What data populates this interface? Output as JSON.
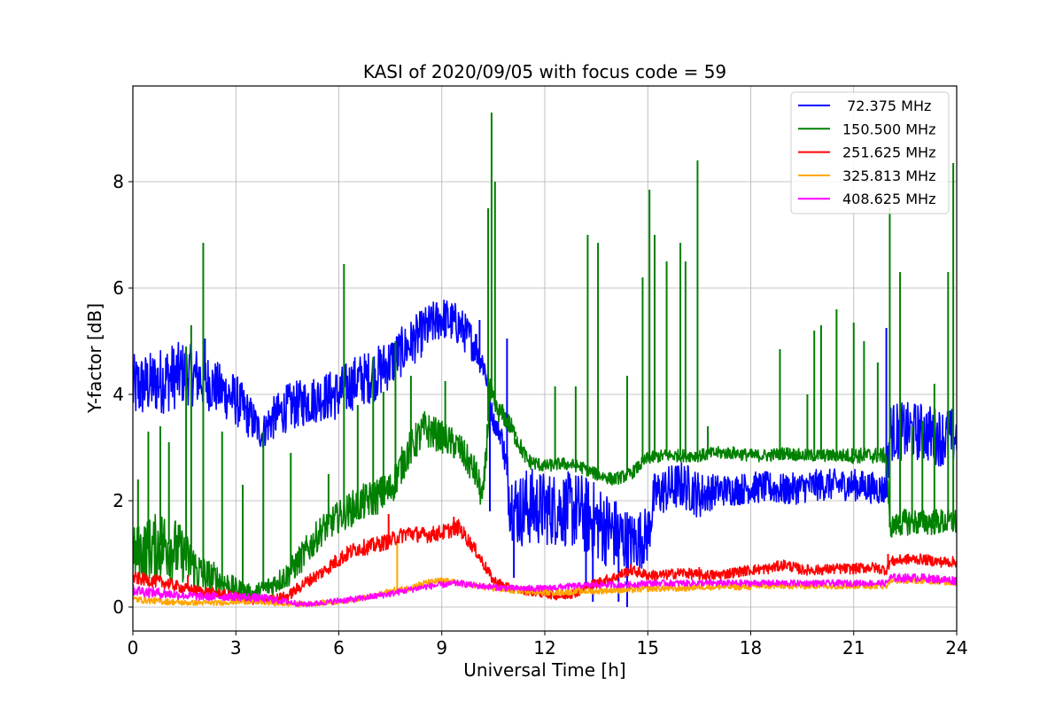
{
  "chart_data": {
    "type": "line",
    "title": "KASI of 2020/09/05 with focus code = 59",
    "xlabel": "Universal Time [h]",
    "ylabel": "Y-factor [dB]",
    "xlim": [
      0,
      24
    ],
    "ylim": [
      -0.45,
      9.8
    ],
    "xticks": [
      0,
      3,
      6,
      9,
      12,
      15,
      18,
      21,
      24
    ],
    "yticks": [
      0,
      2,
      4,
      6,
      8
    ],
    "grid": true,
    "legend_position": "top-right",
    "series": [
      {
        "name": " 72.375 MHz",
        "color": "#0000ff",
        "x": [
          0,
          0.5,
          1,
          1.5,
          2,
          2.5,
          3,
          3.5,
          3.75,
          4,
          4.5,
          5,
          5.5,
          6,
          6.5,
          7,
          7.5,
          8,
          8.5,
          9,
          9.5,
          10,
          10.25,
          10.5,
          10.75,
          11,
          11.25,
          11.5,
          12,
          12.5,
          13,
          13.5,
          14,
          14.5,
          15,
          15.2,
          15.5,
          16,
          16.3,
          16.5,
          17,
          17.5,
          18,
          18.5,
          19,
          19.5,
          20,
          20.5,
          21,
          21.5,
          21.95,
          22.05,
          22.5,
          23,
          23.5,
          24
        ],
        "y": [
          4.1,
          4.2,
          4.3,
          4.4,
          4.3,
          4.1,
          3.9,
          3.5,
          3.25,
          3.5,
          3.75,
          3.85,
          3.95,
          4.0,
          4.25,
          4.35,
          4.6,
          4.9,
          5.2,
          5.45,
          5.3,
          4.9,
          4.5,
          3.5,
          3.2,
          2.0,
          1.8,
          1.9,
          1.85,
          1.85,
          1.8,
          1.6,
          1.4,
          1.2,
          1.35,
          2.1,
          2.2,
          2.3,
          2.2,
          2.1,
          2.2,
          2.2,
          2.25,
          2.25,
          2.2,
          2.25,
          2.3,
          2.3,
          2.3,
          2.25,
          2.2,
          3.3,
          3.3,
          3.3,
          3.2,
          3.2
        ],
        "spread": [
          0.65,
          0.6,
          0.65,
          0.6,
          0.55,
          0.5,
          0.5,
          0.4,
          0.3,
          0.4,
          0.45,
          0.45,
          0.45,
          0.5,
          0.5,
          0.5,
          0.5,
          0.45,
          0.45,
          0.4,
          0.4,
          0.35,
          0.3,
          0.2,
          0.2,
          0.7,
          0.7,
          0.75,
          0.7,
          0.7,
          0.75,
          0.75,
          0.7,
          0.6,
          0.55,
          0.45,
          0.45,
          0.45,
          0.45,
          0.45,
          0.3,
          0.3,
          0.3,
          0.3,
          0.3,
          0.3,
          0.3,
          0.3,
          0.3,
          0.3,
          0.3,
          0.55,
          0.55,
          0.55,
          0.55,
          0.55
        ],
        "spikes": [
          [
            2.1,
            5.05
          ],
          [
            10.1,
            5.4
          ],
          [
            10.4,
            1.8
          ],
          [
            10.9,
            5.05
          ],
          [
            11.1,
            0.55
          ],
          [
            13.2,
            0.45
          ],
          [
            13.4,
            0.1
          ],
          [
            14.15,
            0.1
          ],
          [
            14.4,
            0.0
          ],
          [
            21.95,
            5.25
          ]
        ]
      },
      {
        "name": "150.500 MHz",
        "color": "#008000",
        "x": [
          0,
          0.5,
          1,
          1.5,
          2,
          2.5,
          3,
          3.5,
          4,
          4.5,
          5,
          5.5,
          6,
          6.5,
          7,
          7.5,
          8,
          8.5,
          9,
          9.5,
          10,
          10.2,
          10.4,
          10.6,
          10.8,
          11,
          11.5,
          12,
          12.5,
          13,
          13.5,
          14,
          14.5,
          15,
          15.5,
          16,
          16.5,
          17,
          17.5,
          18,
          18.5,
          19,
          19.5,
          20,
          20.5,
          21,
          21.5,
          21.95,
          22.05,
          22.5,
          23,
          23.5,
          24
        ],
        "y": [
          1.0,
          1.1,
          1.2,
          0.95,
          0.6,
          0.5,
          0.35,
          0.25,
          0.4,
          0.6,
          1.0,
          1.45,
          1.7,
          1.9,
          2.05,
          2.2,
          2.9,
          3.35,
          3.2,
          3.0,
          2.5,
          2.0,
          4.0,
          3.7,
          3.6,
          3.4,
          2.75,
          2.65,
          2.7,
          2.65,
          2.5,
          2.4,
          2.5,
          2.8,
          2.85,
          2.85,
          2.85,
          2.9,
          2.9,
          2.85,
          2.85,
          2.9,
          2.85,
          2.85,
          2.85,
          2.85,
          2.85,
          2.85,
          1.5,
          1.6,
          1.6,
          1.6,
          1.6
        ],
        "spread": [
          0.5,
          0.6,
          0.7,
          0.5,
          0.4,
          0.3,
          0.2,
          0.15,
          0.2,
          0.25,
          0.3,
          0.3,
          0.3,
          0.35,
          0.35,
          0.35,
          0.35,
          0.35,
          0.3,
          0.3,
          0.3,
          0.3,
          0.3,
          0.2,
          0.2,
          0.2,
          0.15,
          0.12,
          0.12,
          0.12,
          0.12,
          0.12,
          0.12,
          0.12,
          0.12,
          0.12,
          0.12,
          0.12,
          0.12,
          0.12,
          0.12,
          0.12,
          0.12,
          0.12,
          0.12,
          0.15,
          0.15,
          0.15,
          0.2,
          0.25,
          0.25,
          0.25,
          0.25
        ],
        "spikes": [
          [
            0.15,
            2.4
          ],
          [
            0.45,
            3.3
          ],
          [
            0.8,
            3.4
          ],
          [
            1.05,
            3.1
          ],
          [
            1.55,
            4.9
          ],
          [
            1.7,
            5.3
          ],
          [
            2.05,
            6.85
          ],
          [
            2.6,
            3.3
          ],
          [
            3.2,
            2.3
          ],
          [
            3.8,
            3.3
          ],
          [
            4.6,
            2.9
          ],
          [
            5.7,
            2.5
          ],
          [
            6.15,
            6.45
          ],
          [
            6.55,
            3.8
          ],
          [
            7.0,
            4.7
          ],
          [
            7.3,
            4.05
          ],
          [
            7.65,
            5.0
          ],
          [
            8.1,
            4.35
          ],
          [
            9.1,
            4.25
          ],
          [
            10.35,
            7.5
          ],
          [
            10.45,
            9.3
          ],
          [
            10.55,
            8.0
          ],
          [
            11.15,
            3.3
          ],
          [
            12.3,
            4.15
          ],
          [
            12.9,
            4.15
          ],
          [
            13.25,
            7.0
          ],
          [
            13.55,
            6.85
          ],
          [
            14.4,
            4.35
          ],
          [
            14.85,
            6.2
          ],
          [
            15.05,
            7.85
          ],
          [
            15.2,
            7.0
          ],
          [
            15.55,
            6.5
          ],
          [
            15.95,
            6.85
          ],
          [
            16.1,
            6.5
          ],
          [
            16.45,
            8.4
          ],
          [
            16.75,
            3.4
          ],
          [
            18.85,
            4.85
          ],
          [
            19.65,
            4.0
          ],
          [
            19.85,
            5.2
          ],
          [
            20.05,
            5.3
          ],
          [
            20.5,
            5.6
          ],
          [
            21.0,
            5.35
          ],
          [
            21.3,
            5.0
          ],
          [
            21.7,
            4.6
          ],
          [
            22.05,
            7.5
          ],
          [
            22.35,
            6.3
          ],
          [
            22.7,
            3.4
          ],
          [
            23.0,
            3.5
          ],
          [
            23.35,
            4.2
          ],
          [
            23.75,
            6.3
          ],
          [
            23.9,
            8.35
          ]
        ]
      },
      {
        "name": "251.625 MHz",
        "color": "#ff0000",
        "x": [
          0,
          0.5,
          1,
          1.5,
          2,
          2.5,
          3,
          3.5,
          4,
          4.5,
          5,
          5.5,
          6,
          6.5,
          7,
          7.5,
          8,
          8.5,
          9,
          9.5,
          10,
          10.5,
          11,
          11.5,
          12,
          12.5,
          13,
          13.5,
          14,
          14.5,
          15,
          15.5,
          16,
          16.5,
          17,
          17.5,
          18,
          18.5,
          19,
          19.5,
          20,
          20.5,
          21,
          21.5,
          21.95,
          22.05,
          22.5,
          23,
          23.5,
          24
        ],
        "y": [
          0.55,
          0.5,
          0.45,
          0.35,
          0.3,
          0.25,
          0.2,
          0.12,
          0.15,
          0.2,
          0.45,
          0.65,
          0.9,
          1.1,
          1.15,
          1.25,
          1.4,
          1.35,
          1.4,
          1.5,
          1.05,
          0.5,
          0.35,
          0.3,
          0.25,
          0.2,
          0.3,
          0.45,
          0.55,
          0.7,
          0.6,
          0.6,
          0.65,
          0.6,
          0.6,
          0.65,
          0.7,
          0.72,
          0.8,
          0.7,
          0.7,
          0.72,
          0.72,
          0.75,
          0.7,
          0.85,
          0.9,
          0.9,
          0.85,
          0.85
        ],
        "spread": [
          0.12,
          0.12,
          0.12,
          0.1,
          0.1,
          0.1,
          0.1,
          0.08,
          0.08,
          0.1,
          0.12,
          0.12,
          0.15,
          0.15,
          0.15,
          0.15,
          0.15,
          0.15,
          0.15,
          0.15,
          0.12,
          0.1,
          0.08,
          0.08,
          0.08,
          0.08,
          0.1,
          0.1,
          0.1,
          0.1,
          0.1,
          0.1,
          0.1,
          0.1,
          0.1,
          0.1,
          0.1,
          0.1,
          0.1,
          0.1,
          0.1,
          0.1,
          0.1,
          0.1,
          0.1,
          0.1,
          0.1,
          0.1,
          0.1,
          0.1
        ],
        "spikes": [
          [
            1.6,
            0.6
          ],
          [
            7.45,
            1.75
          ],
          [
            9.35,
            1.7
          ],
          [
            16.5,
            0.75
          ],
          [
            22.0,
            1.0
          ]
        ]
      },
      {
        "name": "325.813 MHz",
        "color": "#ffa500",
        "x": [
          0,
          0.5,
          1,
          1.5,
          2,
          2.5,
          3,
          3.5,
          4,
          4.5,
          5,
          5.5,
          6,
          6.5,
          7,
          7.5,
          8,
          8.5,
          9,
          9.5,
          10,
          10.5,
          11,
          11.5,
          12,
          12.5,
          13,
          13.5,
          14,
          14.5,
          15,
          15.5,
          16,
          16.5,
          17,
          17.5,
          18,
          18.5,
          19,
          19.5,
          20,
          20.5,
          21,
          21.5,
          21.95,
          22.05,
          22.5,
          23,
          23.5,
          24
        ],
        "y": [
          0.15,
          0.12,
          0.1,
          0.08,
          0.08,
          0.08,
          0.1,
          0.1,
          0.08,
          0.06,
          0.05,
          0.08,
          0.1,
          0.15,
          0.2,
          0.3,
          0.35,
          0.45,
          0.5,
          0.45,
          0.4,
          0.35,
          0.32,
          0.3,
          0.28,
          0.28,
          0.3,
          0.3,
          0.32,
          0.32,
          0.35,
          0.35,
          0.35,
          0.38,
          0.38,
          0.38,
          0.38,
          0.4,
          0.4,
          0.4,
          0.4,
          0.4,
          0.4,
          0.4,
          0.4,
          0.5,
          0.5,
          0.5,
          0.48,
          0.45
        ],
        "spread": [
          0.06,
          0.06,
          0.06,
          0.05,
          0.05,
          0.05,
          0.05,
          0.05,
          0.05,
          0.05,
          0.05,
          0.05,
          0.05,
          0.05,
          0.05,
          0.06,
          0.06,
          0.06,
          0.06,
          0.06,
          0.06,
          0.06,
          0.06,
          0.06,
          0.06,
          0.06,
          0.06,
          0.06,
          0.06,
          0.06,
          0.06,
          0.06,
          0.06,
          0.06,
          0.06,
          0.06,
          0.06,
          0.06,
          0.06,
          0.06,
          0.06,
          0.06,
          0.06,
          0.06,
          0.06,
          0.06,
          0.06,
          0.06,
          0.06,
          0.06
        ],
        "spikes": [
          [
            7.7,
            1.2
          ]
        ]
      },
      {
        "name": "408.625 MHz",
        "color": "#ff00ff",
        "x": [
          0,
          0.5,
          1,
          1.5,
          2,
          2.5,
          3,
          3.5,
          4,
          4.5,
          5,
          5.5,
          6,
          6.5,
          7,
          7.5,
          8,
          8.5,
          9,
          9.5,
          10,
          10.5,
          11,
          11.5,
          12,
          12.5,
          13,
          13.5,
          14,
          14.5,
          15,
          15.5,
          16,
          16.5,
          17,
          17.5,
          18,
          18.5,
          19,
          19.5,
          20,
          20.5,
          21,
          21.5,
          21.95,
          22.05,
          22.5,
          23,
          23.5,
          24
        ],
        "y": [
          0.32,
          0.28,
          0.25,
          0.22,
          0.2,
          0.2,
          0.2,
          0.18,
          0.15,
          0.1,
          0.05,
          0.08,
          0.12,
          0.15,
          0.2,
          0.25,
          0.32,
          0.38,
          0.42,
          0.45,
          0.4,
          0.38,
          0.35,
          0.35,
          0.35,
          0.38,
          0.4,
          0.42,
          0.42,
          0.42,
          0.45,
          0.45,
          0.45,
          0.45,
          0.45,
          0.45,
          0.45,
          0.45,
          0.45,
          0.45,
          0.45,
          0.45,
          0.45,
          0.45,
          0.45,
          0.55,
          0.55,
          0.55,
          0.52,
          0.5
        ],
        "spread": [
          0.1,
          0.1,
          0.1,
          0.08,
          0.08,
          0.08,
          0.08,
          0.08,
          0.08,
          0.06,
          0.05,
          0.05,
          0.06,
          0.06,
          0.06,
          0.06,
          0.06,
          0.06,
          0.06,
          0.06,
          0.06,
          0.06,
          0.06,
          0.06,
          0.06,
          0.06,
          0.06,
          0.06,
          0.06,
          0.06,
          0.06,
          0.06,
          0.06,
          0.06,
          0.06,
          0.06,
          0.06,
          0.06,
          0.06,
          0.06,
          0.06,
          0.06,
          0.06,
          0.06,
          0.06,
          0.08,
          0.08,
          0.08,
          0.08,
          0.08
        ],
        "spikes": []
      }
    ]
  }
}
